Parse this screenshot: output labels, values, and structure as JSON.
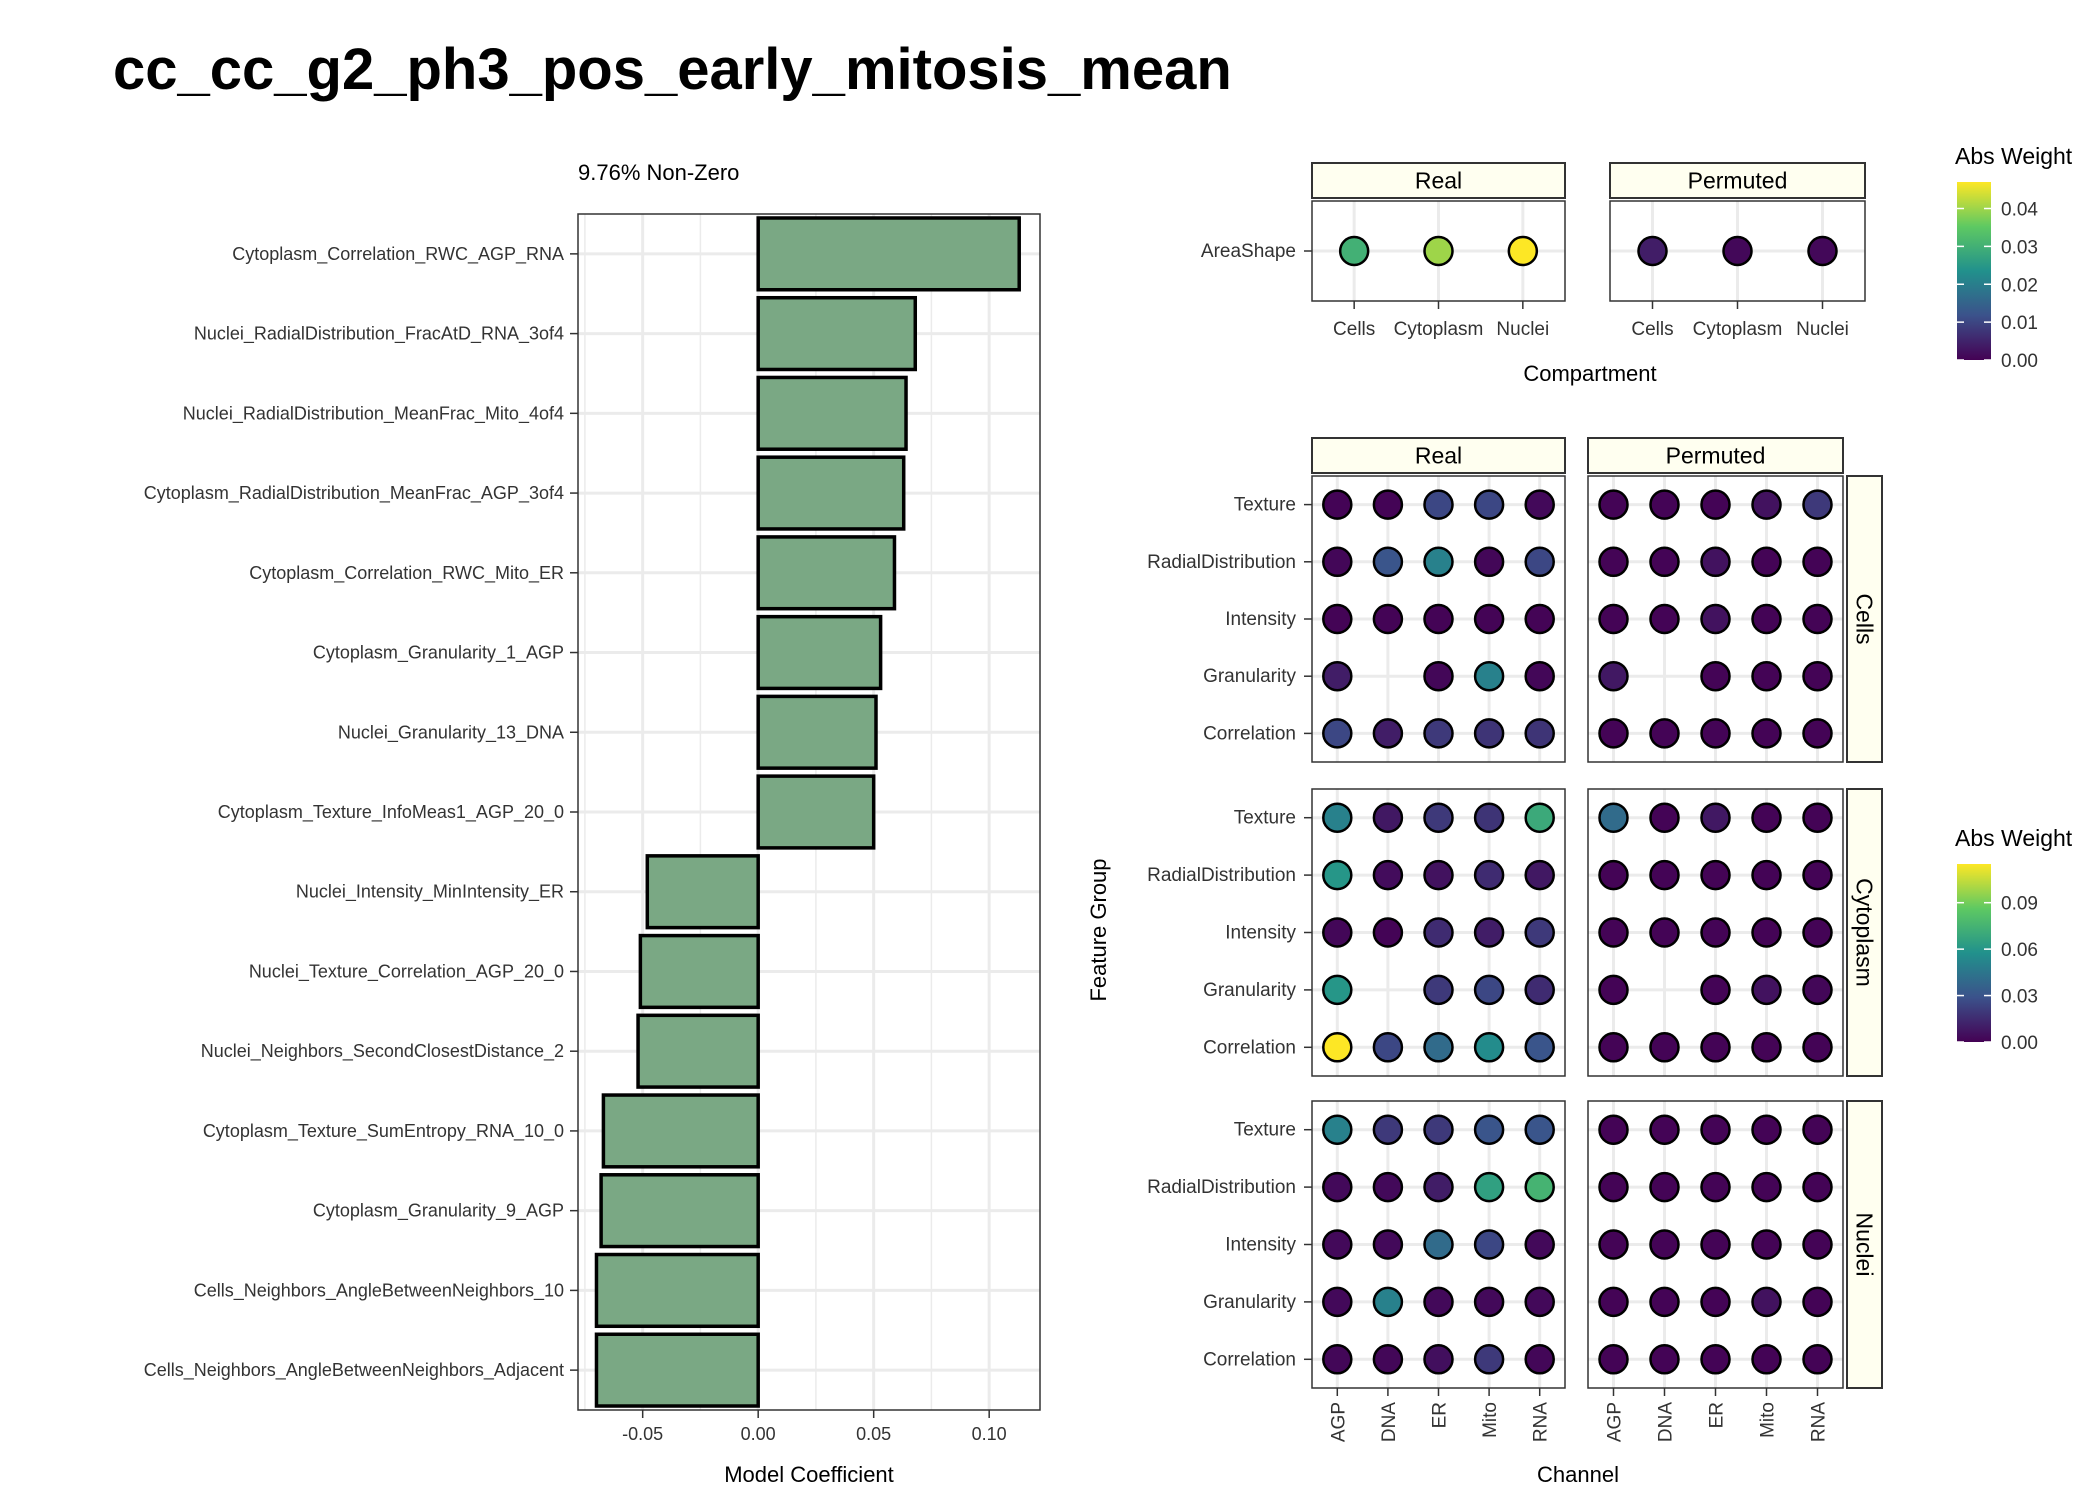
{
  "title": "cc_cc_g2_ph3_pos_early_mitosis_mean",
  "colors": {
    "bar_fill": "#7aa884",
    "bar_stroke": "#000000",
    "strip_fill": "#fffff0",
    "grid": "#ebebeb",
    "viridis": [
      "#440154",
      "#3b528b",
      "#21918c",
      "#5ec962",
      "#fde725"
    ]
  },
  "chart_data": [
    {
      "type": "bar",
      "orientation": "horizontal",
      "subtitle": "9.76% Non-Zero",
      "xlabel": "Model Coefficient",
      "ylabel": "",
      "xlim": [
        -0.078,
        0.122
      ],
      "xticks": [
        -0.05,
        0.0,
        0.05,
        0.1
      ],
      "xtick_labels": [
        "-0.05",
        "0.00",
        "0.05",
        "0.10"
      ],
      "grid": true,
      "categories": [
        "Cytoplasm_Correlation_RWC_AGP_RNA",
        "Nuclei_RadialDistribution_FracAtD_RNA_3of4",
        "Nuclei_RadialDistribution_MeanFrac_Mito_4of4",
        "Cytoplasm_RadialDistribution_MeanFrac_AGP_3of4",
        "Cytoplasm_Correlation_RWC_Mito_ER",
        "Cytoplasm_Granularity_1_AGP",
        "Nuclei_Granularity_13_DNA",
        "Cytoplasm_Texture_InfoMeas1_AGP_20_0",
        "Nuclei_Intensity_MinIntensity_ER",
        "Nuclei_Texture_Correlation_AGP_20_0",
        "Nuclei_Neighbors_SecondClosestDistance_2",
        "Cytoplasm_Texture_SumEntropy_RNA_10_0",
        "Cytoplasm_Granularity_9_AGP",
        "Cells_Neighbors_AngleBetweenNeighbors_10",
        "Cells_Neighbors_AngleBetweenNeighbors_Adjacent"
      ],
      "values": [
        0.113,
        0.068,
        0.064,
        0.063,
        0.059,
        0.053,
        0.051,
        0.05,
        -0.048,
        -0.051,
        -0.052,
        -0.067,
        -0.068,
        -0.07,
        -0.07
      ]
    },
    {
      "type": "scatter",
      "kind": "dot-heatmap",
      "xlabel": "Compartment",
      "facets": [
        "Real",
        "Permuted"
      ],
      "rows": [
        "AreaShape"
      ],
      "columns": [
        "Cells",
        "Cytoplasm",
        "Nuclei"
      ],
      "legend": {
        "title": "Abs Weight",
        "position": "top-right",
        "range": [
          0,
          0.047
        ],
        "ticks": [
          0.0,
          0.01,
          0.02,
          0.03,
          0.04
        ],
        "tick_labels": [
          "0.00",
          "0.01",
          "0.02",
          "0.03",
          "0.04"
        ]
      },
      "values": {
        "Real": [
          [
            0.03,
            0.04,
            0.047
          ]
        ],
        "Permuted": [
          [
            0.004,
            0.001,
            0.001
          ]
        ]
      }
    },
    {
      "type": "scatter",
      "kind": "dot-heatmap",
      "xlabel": "Channel",
      "ylabel": "Feature Group",
      "facets": [
        "Real",
        "Permuted"
      ],
      "compartments": [
        "Cells",
        "Cytoplasm",
        "Nuclei"
      ],
      "rows": [
        "Texture",
        "RadialDistribution",
        "Intensity",
        "Granularity",
        "Correlation"
      ],
      "columns": [
        "AGP",
        "DNA",
        "ER",
        "Mito",
        "RNA"
      ],
      "legend": {
        "title": "Abs Weight",
        "position": "right",
        "range": [
          0,
          0.115
        ],
        "ticks": [
          0.0,
          0.03,
          0.06,
          0.09
        ],
        "tick_labels": [
          "0.00",
          "0.03",
          "0.06",
          "0.09"
        ]
      },
      "values": {
        "Real": {
          "Cells": [
            [
              0.001,
              0.001,
              0.025,
              0.025,
              0.003
            ],
            [
              0.002,
              0.03,
              0.05,
              0.002,
              0.025
            ],
            [
              0.001,
              0.001,
              0.001,
              0.001,
              0.001
            ],
            [
              0.01,
              null,
              0.002,
              0.05,
              0.002
            ],
            [
              0.025,
              0.01,
              0.02,
              0.018,
              0.018
            ]
          ],
          "Cytoplasm": [
            [
              0.05,
              0.008,
              0.02,
              0.018,
              0.07
            ],
            [
              0.06,
              0.004,
              0.006,
              0.015,
              0.008
            ],
            [
              0.002,
              0.001,
              0.015,
              0.01,
              0.02
            ],
            [
              0.06,
              null,
              0.02,
              0.025,
              0.015
            ],
            [
              0.115,
              0.025,
              0.04,
              0.055,
              0.03
            ]
          ],
          "Nuclei": [
            [
              0.05,
              0.02,
              0.02,
              0.03,
              0.03
            ],
            [
              0.003,
              0.003,
              0.01,
              0.065,
              0.075
            ],
            [
              0.003,
              0.003,
              0.04,
              0.025,
              0.003
            ],
            [
              0.003,
              0.05,
              0.003,
              0.003,
              0.003
            ],
            [
              0.002,
              0.002,
              0.005,
              0.02,
              0.002
            ]
          ]
        },
        "Permuted": {
          "Cells": [
            [
              0.001,
              0.001,
              0.001,
              0.006,
              0.02
            ],
            [
              0.001,
              0.001,
              0.006,
              0.001,
              0.001
            ],
            [
              0.001,
              0.001,
              0.006,
              0.001,
              0.001
            ],
            [
              0.008,
              null,
              0.001,
              0.001,
              0.001
            ],
            [
              0.001,
              0.001,
              0.001,
              0.001,
              0.001
            ]
          ],
          "Cytoplasm": [
            [
              0.04,
              0.001,
              0.008,
              0.001,
              0.001
            ],
            [
              0.001,
              0.001,
              0.001,
              0.001,
              0.001
            ],
            [
              0.001,
              0.001,
              0.001,
              0.001,
              0.001
            ],
            [
              0.001,
              null,
              0.001,
              0.006,
              0.002
            ],
            [
              0.001,
              0.001,
              0.001,
              0.001,
              0.001
            ]
          ],
          "Nuclei": [
            [
              0.001,
              0.001,
              0.001,
              0.001,
              0.001
            ],
            [
              0.001,
              0.001,
              0.001,
              0.001,
              0.001
            ],
            [
              0.001,
              0.001,
              0.001,
              0.001,
              0.001
            ],
            [
              0.001,
              0.001,
              0.001,
              0.006,
              0.001
            ],
            [
              0.001,
              0.001,
              0.001,
              0.001,
              0.001
            ]
          ]
        }
      }
    }
  ]
}
